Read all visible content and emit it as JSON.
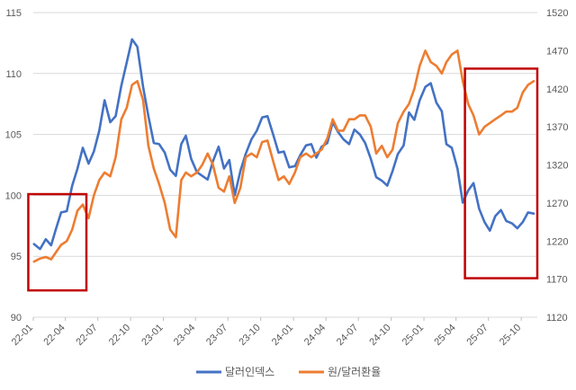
{
  "chart_data": {
    "type": "line",
    "title": "",
    "y_left": {
      "ylim": [
        90,
        115
      ],
      "ticks": [
        90,
        95,
        100,
        105,
        110,
        115
      ]
    },
    "y_right": {
      "ylim": [
        1120,
        1520
      ],
      "ticks": [
        1120,
        1170,
        1220,
        1270,
        1320,
        1370,
        1420,
        1470,
        1520
      ]
    },
    "x_ticks": [
      "22-01",
      "22-04",
      "22-07",
      "22-10",
      "23-01",
      "23-04",
      "23-07",
      "23-10",
      "24-01",
      "24-04",
      "24-07",
      "24-10",
      "25-01",
      "25-04",
      "25-07",
      "25-10"
    ],
    "gridlines": "horizontal",
    "legend_position": "bottom",
    "series": [
      {
        "name": "달러인덱스",
        "axis": "left",
        "color": "#4472C4",
        "points": [
          [
            "2022-01-03",
            96.0
          ],
          [
            "2022-01-20",
            95.6
          ],
          [
            "2022-02-05",
            96.4
          ],
          [
            "2022-02-20",
            95.9
          ],
          [
            "2022-03-05",
            97.2
          ],
          [
            "2022-03-20",
            98.6
          ],
          [
            "2022-04-05",
            98.7
          ],
          [
            "2022-04-20",
            100.8
          ],
          [
            "2022-05-05",
            102.2
          ],
          [
            "2022-05-20",
            103.9
          ],
          [
            "2022-06-05",
            102.6
          ],
          [
            "2022-06-20",
            103.6
          ],
          [
            "2022-07-05",
            105.3
          ],
          [
            "2022-07-20",
            107.8
          ],
          [
            "2022-08-05",
            106.0
          ],
          [
            "2022-08-20",
            106.5
          ],
          [
            "2022-09-05",
            109.0
          ],
          [
            "2022-09-20",
            110.9
          ],
          [
            "2022-10-05",
            112.8
          ],
          [
            "2022-10-20",
            112.2
          ],
          [
            "2022-11-05",
            108.9
          ],
          [
            "2022-11-20",
            106.5
          ],
          [
            "2022-12-05",
            104.3
          ],
          [
            "2022-12-20",
            104.2
          ],
          [
            "2023-01-05",
            103.5
          ],
          [
            "2023-01-20",
            102.1
          ],
          [
            "2023-02-05",
            101.6
          ],
          [
            "2023-02-20",
            104.2
          ],
          [
            "2023-03-05",
            104.9
          ],
          [
            "2023-03-20",
            103.0
          ],
          [
            "2023-04-05",
            101.9
          ],
          [
            "2023-04-20",
            101.6
          ],
          [
            "2023-05-05",
            101.3
          ],
          [
            "2023-05-20",
            102.8
          ],
          [
            "2023-06-05",
            104.0
          ],
          [
            "2023-06-20",
            102.2
          ],
          [
            "2023-07-05",
            102.9
          ],
          [
            "2023-07-20",
            100.0
          ],
          [
            "2023-08-05",
            102.0
          ],
          [
            "2023-08-20",
            103.4
          ],
          [
            "2023-09-05",
            104.6
          ],
          [
            "2023-09-20",
            105.3
          ],
          [
            "2023-10-05",
            106.4
          ],
          [
            "2023-10-20",
            106.5
          ],
          [
            "2023-11-05",
            105.0
          ],
          [
            "2023-11-20",
            103.5
          ],
          [
            "2023-12-05",
            103.6
          ],
          [
            "2023-12-20",
            102.3
          ],
          [
            "2024-01-05",
            102.4
          ],
          [
            "2024-01-20",
            103.3
          ],
          [
            "2024-02-05",
            104.1
          ],
          [
            "2024-02-20",
            104.2
          ],
          [
            "2024-03-05",
            103.1
          ],
          [
            "2024-03-20",
            104.0
          ],
          [
            "2024-04-05",
            104.3
          ],
          [
            "2024-04-20",
            106.0
          ],
          [
            "2024-05-05",
            105.2
          ],
          [
            "2024-05-20",
            104.6
          ],
          [
            "2024-06-05",
            104.2
          ],
          [
            "2024-06-20",
            105.4
          ],
          [
            "2024-07-05",
            105.0
          ],
          [
            "2024-07-20",
            104.3
          ],
          [
            "2024-08-05",
            103.0
          ],
          [
            "2024-08-20",
            101.5
          ],
          [
            "2024-09-05",
            101.2
          ],
          [
            "2024-09-20",
            100.8
          ],
          [
            "2024-10-05",
            102.0
          ],
          [
            "2024-10-20",
            103.4
          ],
          [
            "2024-11-05",
            104.1
          ],
          [
            "2024-11-20",
            106.8
          ],
          [
            "2024-12-05",
            106.2
          ],
          [
            "2024-12-20",
            107.8
          ],
          [
            "2025-01-05",
            108.9
          ],
          [
            "2025-01-20",
            109.2
          ],
          [
            "2025-02-05",
            107.6
          ],
          [
            "2025-02-20",
            106.9
          ],
          [
            "2025-03-05",
            104.2
          ],
          [
            "2025-03-20",
            103.9
          ],
          [
            "2025-04-05",
            102.2
          ],
          [
            "2025-04-20",
            99.4
          ],
          [
            "2025-05-05",
            100.4
          ],
          [
            "2025-05-20",
            101.0
          ],
          [
            "2025-06-05",
            98.9
          ],
          [
            "2025-06-20",
            97.8
          ],
          [
            "2025-07-05",
            97.1
          ],
          [
            "2025-07-20",
            98.3
          ],
          [
            "2025-08-05",
            98.8
          ],
          [
            "2025-08-20",
            97.9
          ],
          [
            "2025-09-05",
            97.7
          ],
          [
            "2025-09-20",
            97.3
          ],
          [
            "2025-10-05",
            97.8
          ],
          [
            "2025-10-20",
            98.6
          ],
          [
            "2025-11-05",
            98.5
          ]
        ]
      },
      {
        "name": "원/달러환율",
        "axis": "right",
        "color": "#ED7D31",
        "points": [
          [
            "2022-01-03",
            1193
          ],
          [
            "2022-01-20",
            1197
          ],
          [
            "2022-02-05",
            1199
          ],
          [
            "2022-02-20",
            1196
          ],
          [
            "2022-03-05",
            1205
          ],
          [
            "2022-03-20",
            1215
          ],
          [
            "2022-04-05",
            1220
          ],
          [
            "2022-04-20",
            1235
          ],
          [
            "2022-05-05",
            1260
          ],
          [
            "2022-05-20",
            1268
          ],
          [
            "2022-06-05",
            1250
          ],
          [
            "2022-06-20",
            1280
          ],
          [
            "2022-07-05",
            1300
          ],
          [
            "2022-07-20",
            1310
          ],
          [
            "2022-08-05",
            1305
          ],
          [
            "2022-08-20",
            1330
          ],
          [
            "2022-09-05",
            1380
          ],
          [
            "2022-09-20",
            1395
          ],
          [
            "2022-10-05",
            1425
          ],
          [
            "2022-10-20",
            1430
          ],
          [
            "2022-11-05",
            1405
          ],
          [
            "2022-11-20",
            1345
          ],
          [
            "2022-12-05",
            1315
          ],
          [
            "2022-12-20",
            1295
          ],
          [
            "2023-01-05",
            1270
          ],
          [
            "2023-01-20",
            1235
          ],
          [
            "2023-02-05",
            1225
          ],
          [
            "2023-02-20",
            1300
          ],
          [
            "2023-03-05",
            1310
          ],
          [
            "2023-03-20",
            1305
          ],
          [
            "2023-04-05",
            1310
          ],
          [
            "2023-04-20",
            1320
          ],
          [
            "2023-05-05",
            1335
          ],
          [
            "2023-05-20",
            1320
          ],
          [
            "2023-06-05",
            1290
          ],
          [
            "2023-06-20",
            1285
          ],
          [
            "2023-07-05",
            1305
          ],
          [
            "2023-07-20",
            1270
          ],
          [
            "2023-08-05",
            1290
          ],
          [
            "2023-08-20",
            1330
          ],
          [
            "2023-09-05",
            1335
          ],
          [
            "2023-09-20",
            1330
          ],
          [
            "2023-10-05",
            1350
          ],
          [
            "2023-10-20",
            1352
          ],
          [
            "2023-11-05",
            1325
          ],
          [
            "2023-11-20",
            1300
          ],
          [
            "2023-12-05",
            1305
          ],
          [
            "2023-12-20",
            1295
          ],
          [
            "2024-01-05",
            1310
          ],
          [
            "2024-01-20",
            1330
          ],
          [
            "2024-02-05",
            1335
          ],
          [
            "2024-02-20",
            1330
          ],
          [
            "2024-03-05",
            1335
          ],
          [
            "2024-03-20",
            1340
          ],
          [
            "2024-04-05",
            1355
          ],
          [
            "2024-04-20",
            1380
          ],
          [
            "2024-05-05",
            1365
          ],
          [
            "2024-05-20",
            1365
          ],
          [
            "2024-06-05",
            1380
          ],
          [
            "2024-06-20",
            1380
          ],
          [
            "2024-07-05",
            1385
          ],
          [
            "2024-07-20",
            1385
          ],
          [
            "2024-08-05",
            1370
          ],
          [
            "2024-08-20",
            1335
          ],
          [
            "2024-09-05",
            1345
          ],
          [
            "2024-09-20",
            1330
          ],
          [
            "2024-10-05",
            1340
          ],
          [
            "2024-10-20",
            1375
          ],
          [
            "2024-11-05",
            1390
          ],
          [
            "2024-11-20",
            1400
          ],
          [
            "2024-12-05",
            1420
          ],
          [
            "2024-12-20",
            1450
          ],
          [
            "2025-01-05",
            1470
          ],
          [
            "2025-01-20",
            1455
          ],
          [
            "2025-02-05",
            1450
          ],
          [
            "2025-02-20",
            1440
          ],
          [
            "2025-03-05",
            1455
          ],
          [
            "2025-03-20",
            1465
          ],
          [
            "2025-04-05",
            1470
          ],
          [
            "2025-04-20",
            1430
          ],
          [
            "2025-05-05",
            1400
          ],
          [
            "2025-05-20",
            1385
          ],
          [
            "2025-06-05",
            1360
          ],
          [
            "2025-06-20",
            1370
          ],
          [
            "2025-07-05",
            1375
          ],
          [
            "2025-07-20",
            1380
          ],
          [
            "2025-08-05",
            1385
          ],
          [
            "2025-08-20",
            1390
          ],
          [
            "2025-09-05",
            1390
          ],
          [
            "2025-09-20",
            1395
          ],
          [
            "2025-10-05",
            1415
          ],
          [
            "2025-10-20",
            1425
          ],
          [
            "2025-11-05",
            1430
          ]
        ]
      }
    ]
  },
  "annotations": [
    {
      "color": "#C00000",
      "from": "2021-12-18",
      "to": "2022-05-30",
      "y_left": [
        92.2,
        100.1
      ]
    },
    {
      "color": "#C00000",
      "from": "2025-04-26",
      "to": "2025-11-15",
      "y_left": [
        93.2,
        110.4
      ]
    }
  ]
}
